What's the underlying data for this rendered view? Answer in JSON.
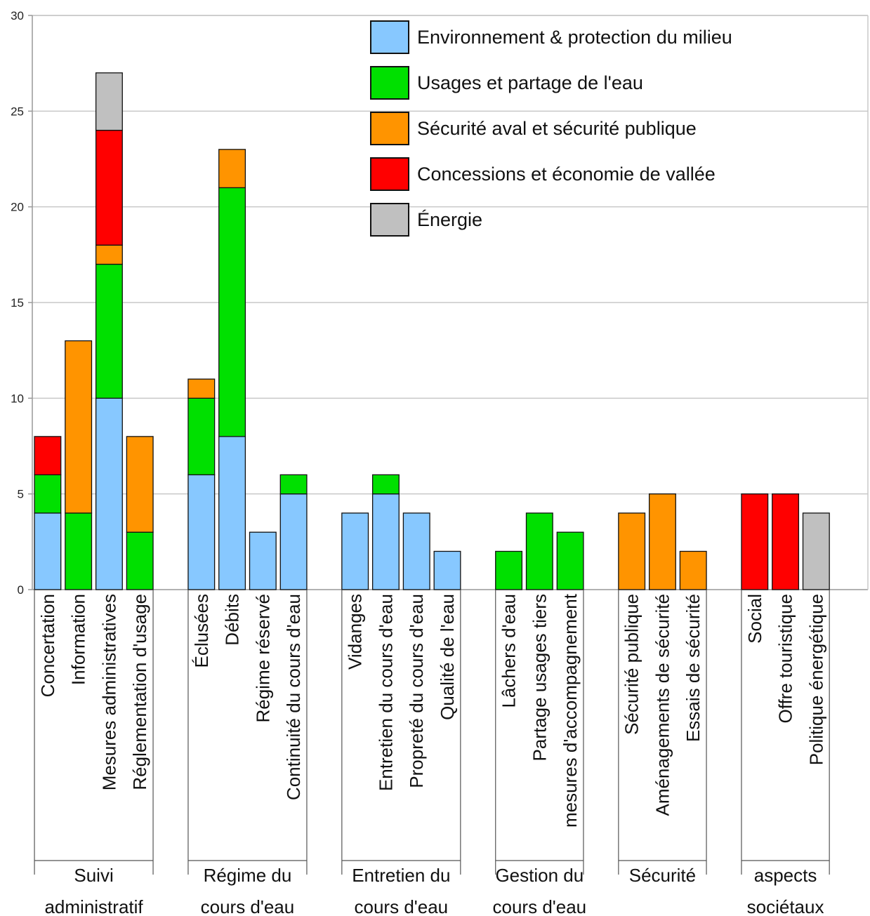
{
  "chart_data": {
    "type": "bar",
    "stacked": true,
    "ylim": [
      0,
      30
    ],
    "yticks": [
      0,
      5,
      10,
      15,
      20,
      25,
      30
    ],
    "grid": true,
    "legend_position": "top-right",
    "series": [
      {
        "name": "Environnement & protection du milieu",
        "color": "#87c8ff"
      },
      {
        "name": "Usages et partage de l'eau",
        "color": "#00e000"
      },
      {
        "name": "Sécurité aval et sécurité publique",
        "color": "#ff9400"
      },
      {
        "name": "Concessions et économie de vallée",
        "color": "#ff0000"
      },
      {
        "name": "Énergie",
        "color": "#c0c0c0"
      }
    ],
    "groups": [
      {
        "label_lines": [
          "Suivi",
          "administratif"
        ],
        "categories": [
          {
            "name": "Concertation",
            "values": [
              4,
              2,
              0,
              2,
              0
            ]
          },
          {
            "name": "Information",
            "values": [
              0,
              4,
              9,
              0,
              0
            ]
          },
          {
            "name": "Mesures administratives",
            "values": [
              10,
              7,
              1,
              6,
              3
            ]
          },
          {
            "name": "Réglementation d'usage",
            "values": [
              0,
              3,
              5,
              0,
              0
            ]
          }
        ]
      },
      {
        "label_lines": [
          "Régime du",
          "cours d'eau"
        ],
        "categories": [
          {
            "name": "Éclusées",
            "values": [
              6,
              4,
              1,
              0,
              0
            ]
          },
          {
            "name": "Débits",
            "values": [
              8,
              13,
              2,
              0,
              0
            ]
          },
          {
            "name": "Régime réservé",
            "values": [
              3,
              0,
              0,
              0,
              0
            ]
          },
          {
            "name": "Continuité du cours d'eau",
            "values": [
              5,
              1,
              0,
              0,
              0
            ]
          }
        ]
      },
      {
        "label_lines": [
          "Entretien du",
          "cours d'eau"
        ],
        "categories": [
          {
            "name": "Vidanges",
            "values": [
              4,
              0,
              0,
              0,
              0
            ]
          },
          {
            "name": "Entretien du cours d'eau",
            "values": [
              5,
              1,
              0,
              0,
              0
            ]
          },
          {
            "name": "Propreté du cours d'eau",
            "values": [
              4,
              0,
              0,
              0,
              0
            ]
          },
          {
            "name": "Qualité de l'eau",
            "values": [
              2,
              0,
              0,
              0,
              0
            ]
          }
        ]
      },
      {
        "label_lines": [
          "Gestion du",
          "cours d'eau"
        ],
        "categories": [
          {
            "name": "Lâchers d'eau",
            "values": [
              0,
              2,
              0,
              0,
              0
            ]
          },
          {
            "name": "Partage usages tiers",
            "values": [
              0,
              4,
              0,
              0,
              0
            ]
          },
          {
            "name": "mesures d'accompagnement",
            "values": [
              0,
              3,
              0,
              0,
              0
            ]
          }
        ]
      },
      {
        "label_lines": [
          "Sécurité"
        ],
        "categories": [
          {
            "name": "Sécurité publique",
            "values": [
              0,
              0,
              4,
              0,
              0
            ]
          },
          {
            "name": "Aménagements de sécurité",
            "values": [
              0,
              0,
              5,
              0,
              0
            ]
          },
          {
            "name": "Essais de sécurité",
            "values": [
              0,
              0,
              2,
              0,
              0
            ]
          }
        ]
      },
      {
        "label_lines": [
          "aspects",
          "sociétaux"
        ],
        "categories": [
          {
            "name": "Social",
            "values": [
              0,
              0,
              0,
              5,
              0
            ]
          },
          {
            "name": "Offre touristique",
            "values": [
              0,
              0,
              0,
              5,
              0
            ]
          },
          {
            "name": "Politique énergétique",
            "values": [
              0,
              0,
              0,
              0,
              4
            ]
          }
        ]
      }
    ]
  }
}
